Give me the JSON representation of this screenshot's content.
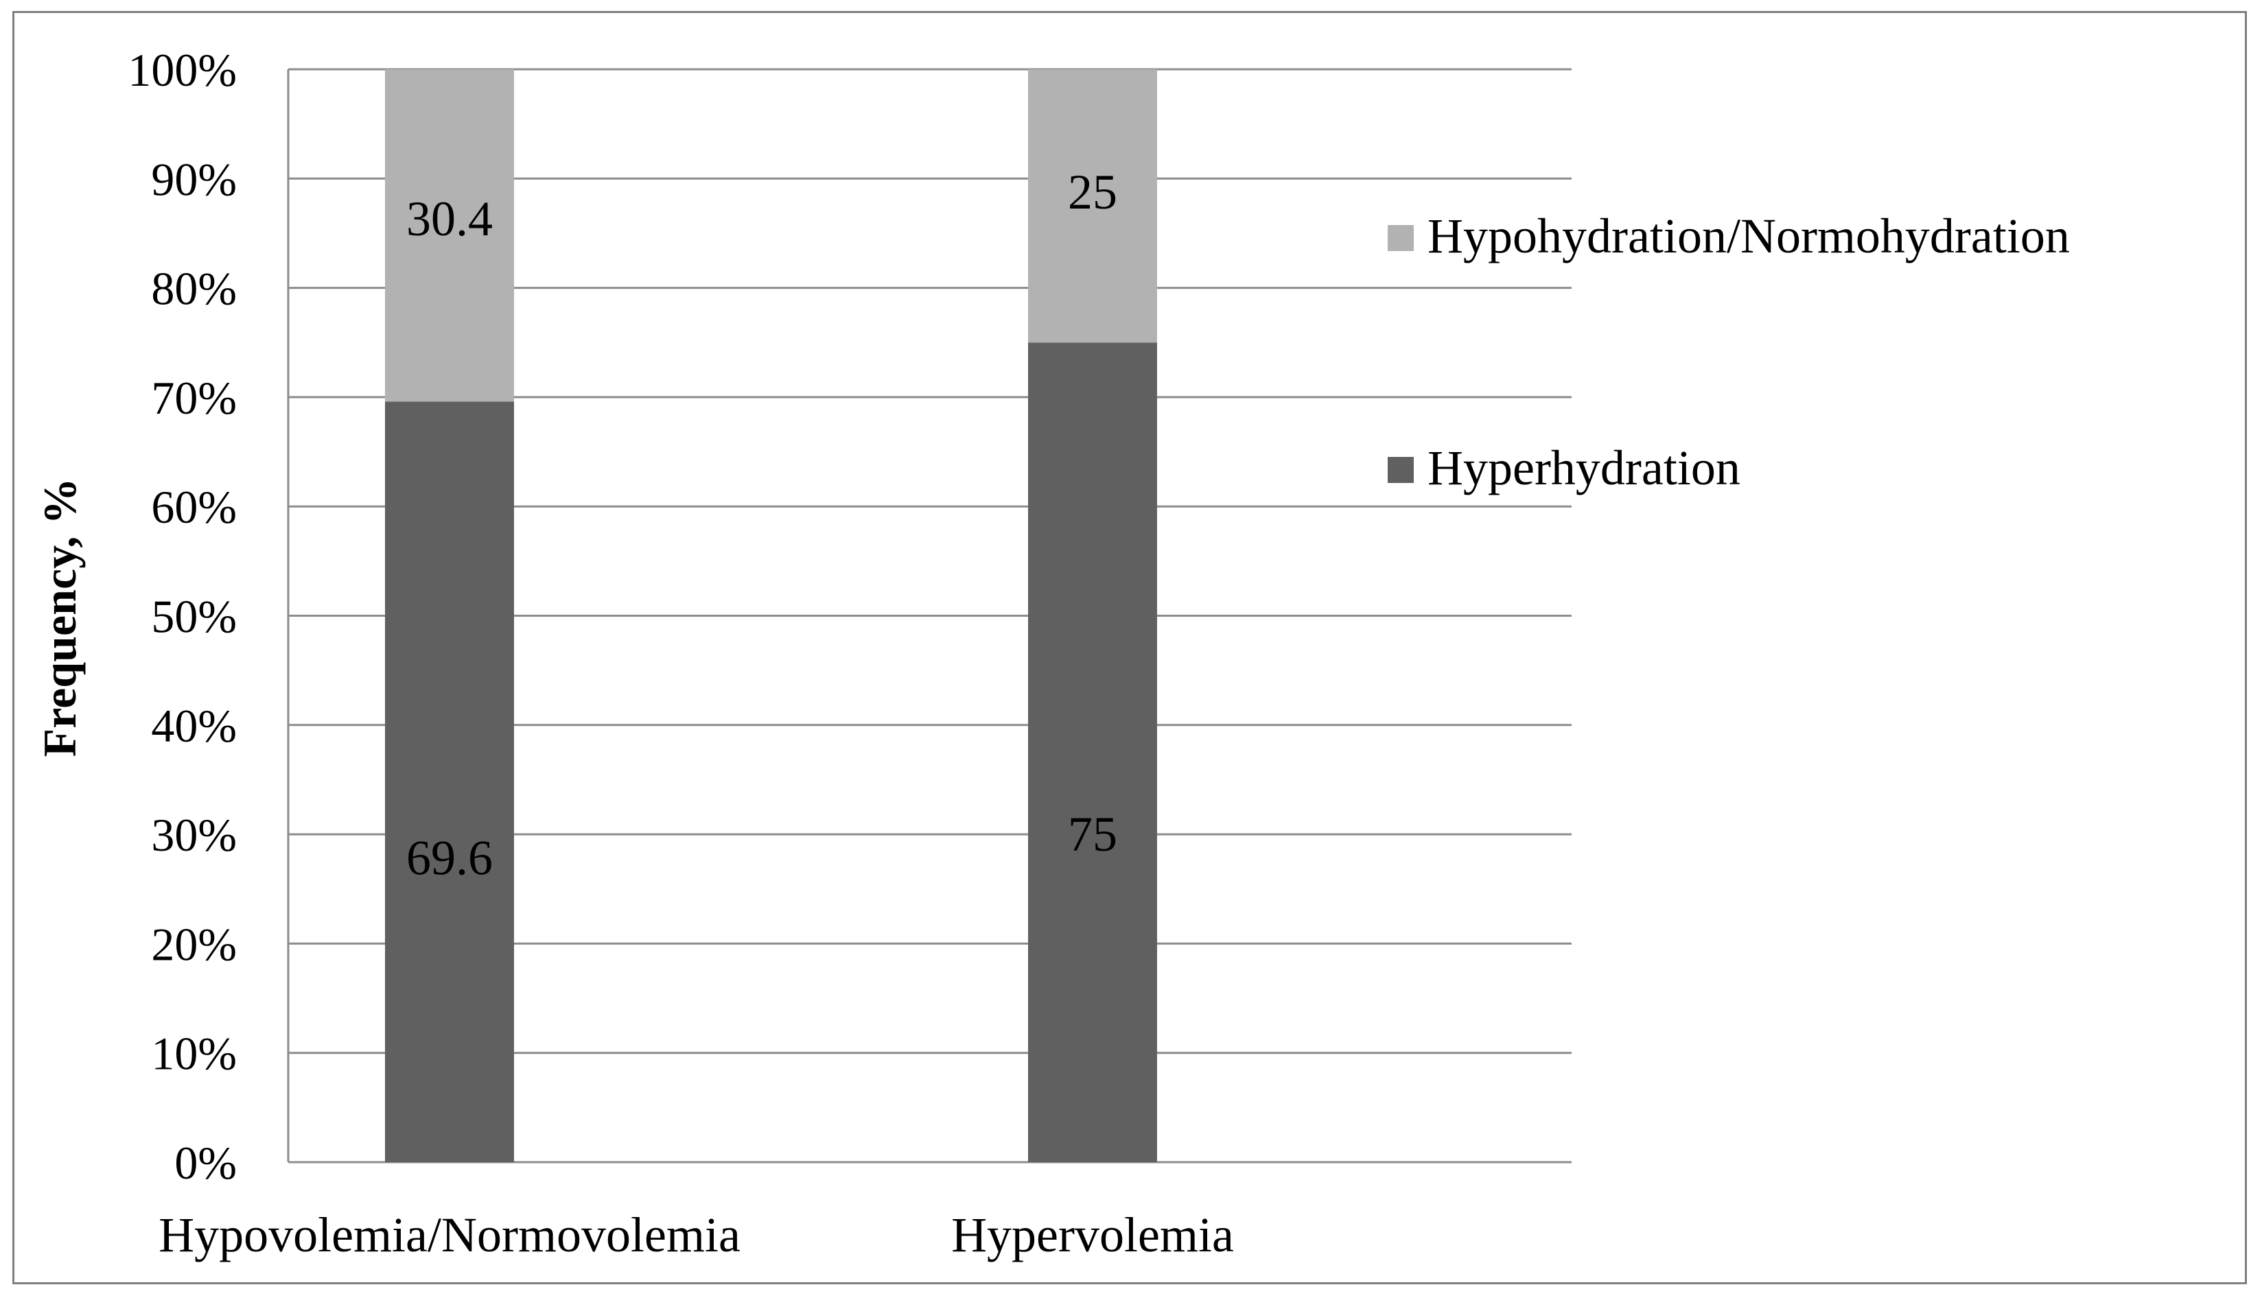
{
  "chart_data": {
    "type": "bar",
    "stacked": true,
    "title": "",
    "xlabel": "",
    "ylabel": "Frequency, %",
    "ylim": [
      0,
      100
    ],
    "yticks": [
      "0%",
      "10%",
      "20%",
      "30%",
      "40%",
      "50%",
      "60%",
      "70%",
      "80%",
      "90%",
      "100%"
    ],
    "categories": [
      "Hypovolemia/Normovolemia",
      "Hypervolemia"
    ],
    "series": [
      {
        "name": "Hyperhydration",
        "values": [
          69.6,
          75
        ],
        "labels": [
          "69.6",
          "75"
        ],
        "color": "#606060"
      },
      {
        "name": "Hypohydration/Normohydration",
        "values": [
          30.4,
          25
        ],
        "labels": [
          "30.4",
          "25"
        ],
        "color": "#b2b2b2"
      }
    ],
    "legend": {
      "position": "right",
      "order": [
        "Hypohydration/Normohydration",
        "Hyperhydration"
      ]
    },
    "grid": true,
    "gridline_color": "#8c8c8c"
  }
}
